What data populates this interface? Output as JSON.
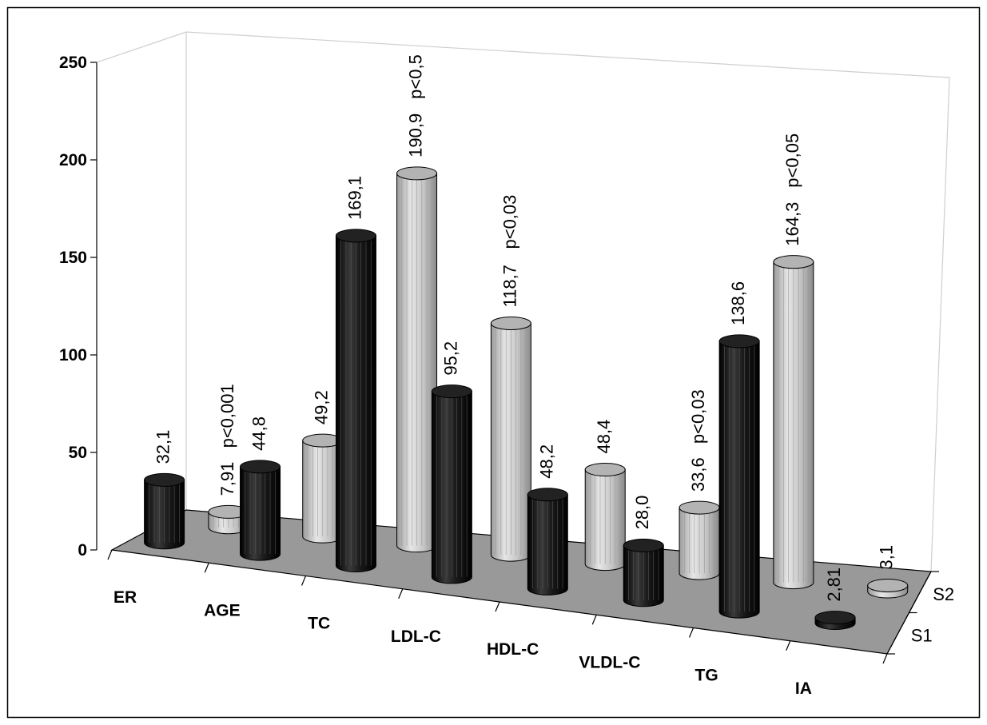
{
  "chart_data": {
    "type": "bar",
    "title": "",
    "xlabel": "",
    "ylabel": "",
    "ylim": [
      0,
      250
    ],
    "yticks": [
      0,
      50,
      100,
      150,
      200,
      250
    ],
    "ytick_labels": [
      "0",
      "50",
      "100",
      "150",
      "200",
      "250"
    ],
    "categories": [
      "ER",
      "AGE",
      "TC",
      "LDL-C",
      "HDL-C",
      "VLDL-C",
      "TG",
      "IA"
    ],
    "series": [
      {
        "name": "S1",
        "color": "#111111",
        "values": [
          32.1,
          44.8,
          169.1,
          95.2,
          48.2,
          28.0,
          138.6,
          2.81
        ]
      },
      {
        "name": "S2",
        "color": "#c4c4c4",
        "values": [
          7.91,
          49.2,
          190.9,
          118.7,
          48.4,
          33.6,
          164.3,
          3.1
        ]
      }
    ],
    "data_labels": {
      "S1": [
        "32,1",
        "44,8",
        "169,1",
        "95,2",
        "48,2",
        "28,0",
        "138,6",
        "2,81"
      ],
      "S2": [
        "7,91",
        "49,2",
        "190,9",
        "118,7",
        "48,4",
        "33,6",
        "164,3",
        "3,1"
      ]
    },
    "annotations": [
      {
        "category": "ER",
        "text": "p<0,001"
      },
      {
        "category": "TC",
        "text": "p<0,5"
      },
      {
        "category": "LDL-C",
        "text": "p<0,03"
      },
      {
        "category": "VLDL-C",
        "text": "p<0,03"
      },
      {
        "category": "TG",
        "text": "p<0,05"
      }
    ],
    "grid": false,
    "legend": "none",
    "style": "3d-cylinder",
    "floor_color": "#999999"
  }
}
